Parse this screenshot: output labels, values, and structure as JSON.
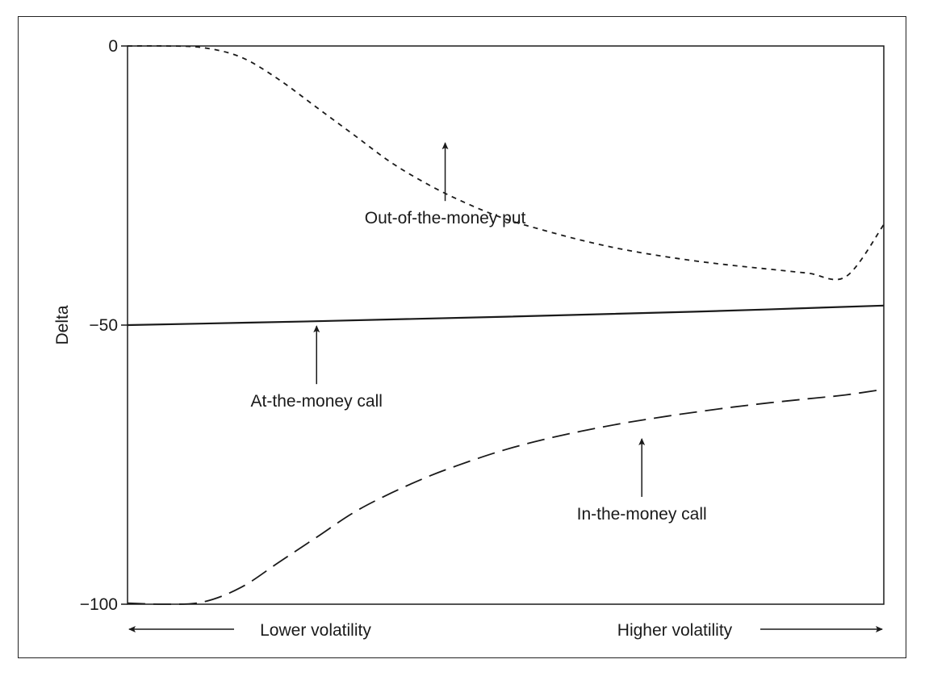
{
  "chart_data": {
    "type": "line",
    "ylabel": "Delta",
    "ylim": [
      -100,
      0
    ],
    "yticks": [
      {
        "value": 0,
        "label": "0"
      },
      {
        "value": -50,
        "label": "−50"
      },
      {
        "value": -100,
        "label": "−100"
      }
    ],
    "x_axis": {
      "left_label": "Lower volatility",
      "right_label": "Higher volatility",
      "xlim": [
        0,
        100
      ]
    },
    "series": [
      {
        "name": "Out-of-the-money put",
        "style": "short-dash",
        "x": [
          0,
          5,
          10,
          15,
          20,
          25,
          30,
          35,
          40,
          45,
          50,
          55,
          60,
          65,
          70,
          75,
          80,
          85,
          90,
          95,
          100
        ],
        "y": [
          0,
          0,
          -0.3,
          -2,
          -6,
          -11,
          -16,
          -21,
          -25,
          -28.3,
          -31,
          -33,
          -34.8,
          -36.3,
          -37.5,
          -38.5,
          -39.3,
          -40,
          -40.7,
          -41.3,
          -32
        ]
      },
      {
        "name": "At-the-money call",
        "style": "solid",
        "x": [
          0,
          25,
          50,
          75,
          100
        ],
        "y": [
          -50,
          -49.3,
          -48.5,
          -47.6,
          -46.5
        ]
      },
      {
        "name": "In-the-money call",
        "style": "long-dash",
        "x": [
          0,
          5,
          10,
          15,
          20,
          25,
          30,
          35,
          40,
          45,
          50,
          55,
          60,
          65,
          70,
          75,
          80,
          85,
          90,
          95,
          100
        ],
        "y": [
          -99.8,
          -100,
          -99.6,
          -97,
          -92.5,
          -88,
          -83.5,
          -80,
          -77,
          -74.5,
          -72.3,
          -70.5,
          -69,
          -67.7,
          -66.6,
          -65.6,
          -64.7,
          -63.9,
          -63.2,
          -62.5,
          -61.5
        ]
      }
    ],
    "annotations": [
      {
        "text": "Out-of-the-money put",
        "series": "Out-of-the-money put",
        "x": 42,
        "y": -16.5
      },
      {
        "text": "At-the-money call",
        "series": "At-the-money call",
        "x": 25,
        "y": -49.3
      },
      {
        "text": "In-the-money call",
        "series": "In-the-money call",
        "x": 68,
        "y": -69.5
      }
    ],
    "grid": false,
    "legend": "none"
  }
}
